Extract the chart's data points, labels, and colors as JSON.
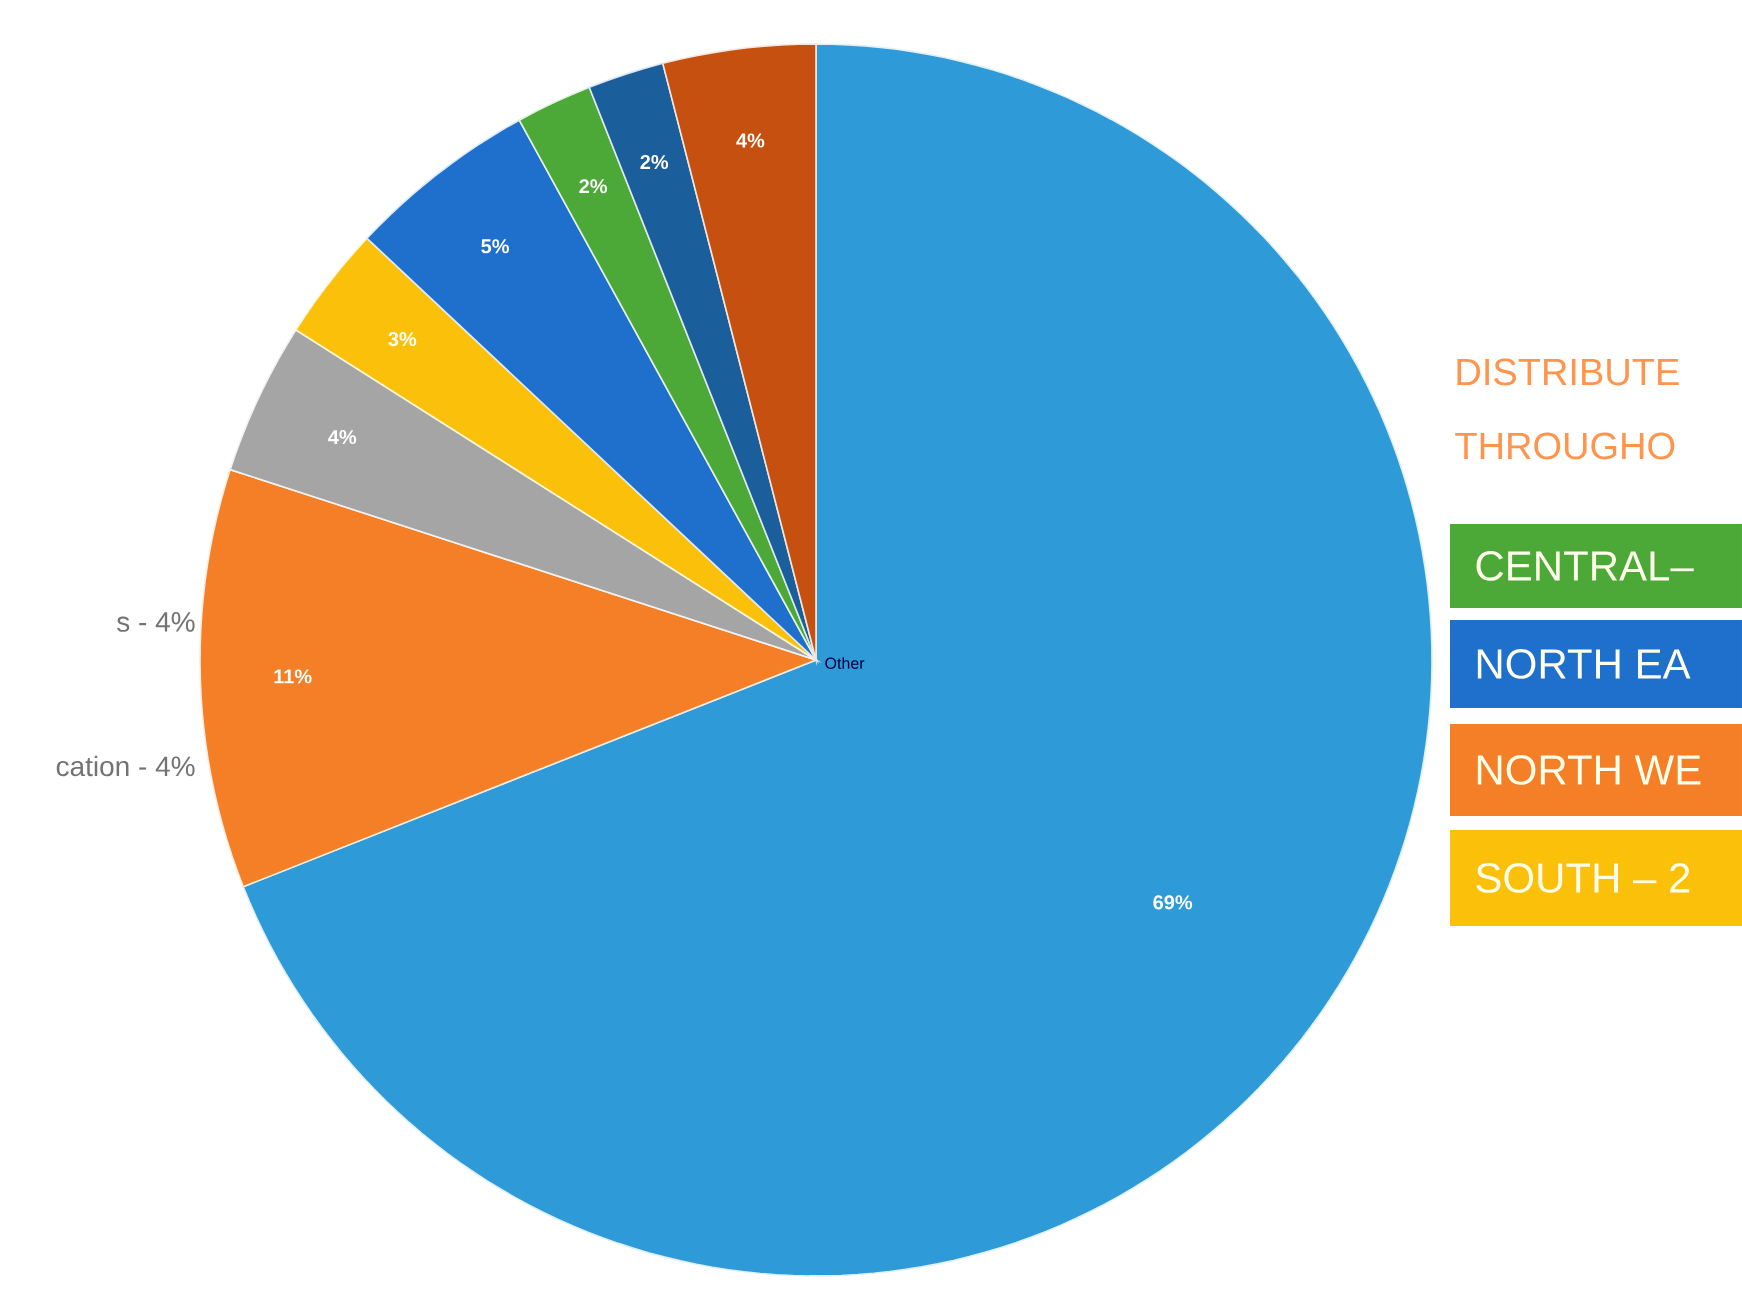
{
  "chart_data": {
    "type": "pie",
    "categories": [
      null,
      null,
      null,
      null,
      null,
      null,
      null,
      null
    ],
    "values": [
      69,
      11,
      4,
      3,
      5,
      2,
      2,
      4
    ],
    "colors": [
      "#2e9bd8",
      "#f57f26",
      "#a5a5a5",
      "#fbc00a",
      "#1f6fcc",
      "#4ca938",
      "#1b5e9c",
      "#c5500f"
    ],
    "value_labels": [
      "69%",
      "11%",
      "4%",
      "3%",
      "5%",
      "2%",
      "2%",
      "4%"
    ],
    "annotations": [
      "Other",
      "s - 4%",
      "cation - 4%",
      "DISTRIBUTE",
      "THROUGHO",
      "CENTRAL–",
      "NORTH EA",
      "NORTH WE",
      "SOUTH – 2"
    ]
  }
}
